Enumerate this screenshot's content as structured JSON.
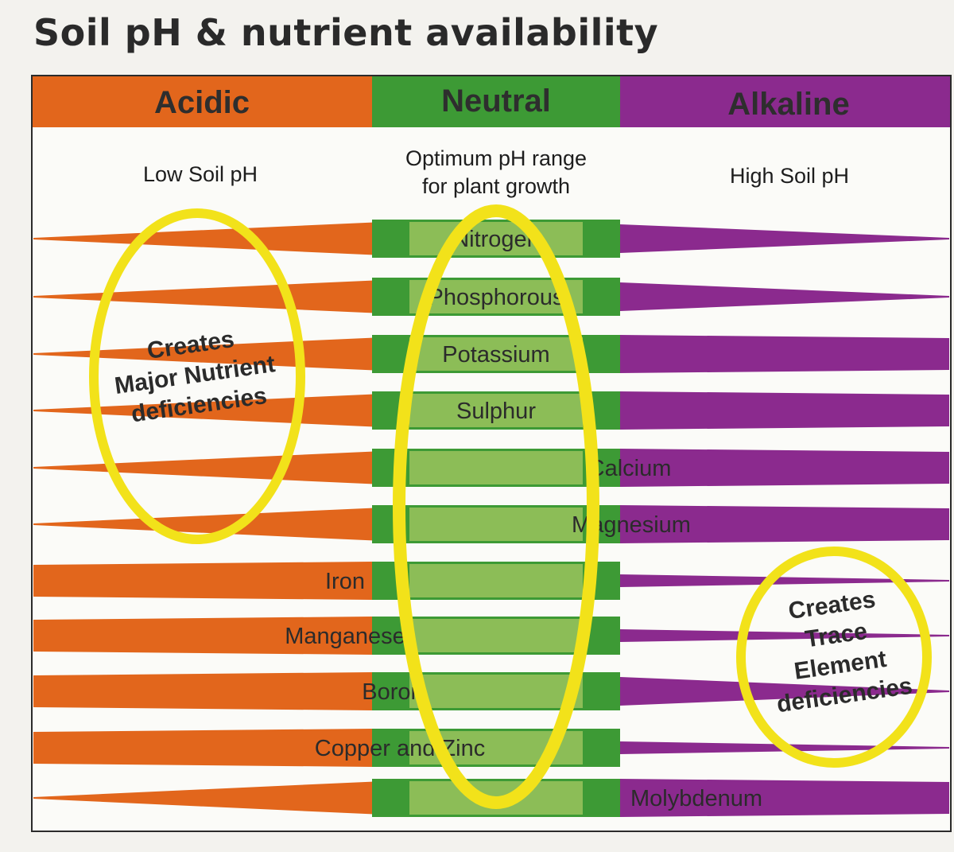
{
  "title": "Soil pH & nutrient availability",
  "zones": [
    {
      "label": "Acidic",
      "description": [
        "Low Soil pH"
      ],
      "color": "#e2661c"
    },
    {
      "label": "Neutral",
      "description": [
        "Optimum pH range",
        "for plant growth"
      ],
      "color": "#3d9a35"
    },
    {
      "label": "Alkaline",
      "description": [
        "High Soil pH"
      ],
      "color": "#8b2a8e"
    }
  ],
  "colors": {
    "acidic": "#e2661c",
    "neutral": "#3d9a35",
    "alkaline": "#8b2a8e",
    "highlight_ellipse": "#f2e21a",
    "acidic_light": "#eea364",
    "neutral_light": "#8cbd57",
    "alkaline_light": "#b07ab8"
  },
  "nutrients": [
    {
      "name": "Nitrogen",
      "availability": {
        "acidic": "low",
        "neutral": "high",
        "alkaline": "medium"
      }
    },
    {
      "name": "Phosphorous",
      "availability": {
        "acidic": "low",
        "neutral": "high",
        "alkaline": "medium"
      }
    },
    {
      "name": "Potassium",
      "availability": {
        "acidic": "low",
        "neutral": "high",
        "alkaline": "high"
      }
    },
    {
      "name": "Sulphur",
      "availability": {
        "acidic": "low",
        "neutral": "high",
        "alkaline": "high"
      }
    },
    {
      "name": "Calcium",
      "availability": {
        "acidic": "low",
        "neutral": "high",
        "alkaline": "high"
      }
    },
    {
      "name": "Magnesium",
      "availability": {
        "acidic": "low",
        "neutral": "high",
        "alkaline": "high"
      }
    },
    {
      "name": "Iron",
      "availability": {
        "acidic": "high",
        "neutral": "high",
        "alkaline": "low"
      }
    },
    {
      "name": "Manganese",
      "availability": {
        "acidic": "high",
        "neutral": "high",
        "alkaline": "low"
      }
    },
    {
      "name": "Boron",
      "availability": {
        "acidic": "high",
        "neutral": "high",
        "alkaline": "medium"
      }
    },
    {
      "name": "Copper and Zinc",
      "availability": {
        "acidic": "high",
        "neutral": "high",
        "alkaline": "low"
      }
    },
    {
      "name": "Molybdenum",
      "availability": {
        "acidic": "low",
        "neutral": "high",
        "alkaline": "high"
      }
    }
  ],
  "annotations": [
    {
      "lines": [
        "Creates",
        "Major Nutrient",
        "deficiencies"
      ]
    },
    {
      "lines": [
        "Creates",
        "Trace",
        "Element",
        "deficiencies"
      ]
    }
  ]
}
